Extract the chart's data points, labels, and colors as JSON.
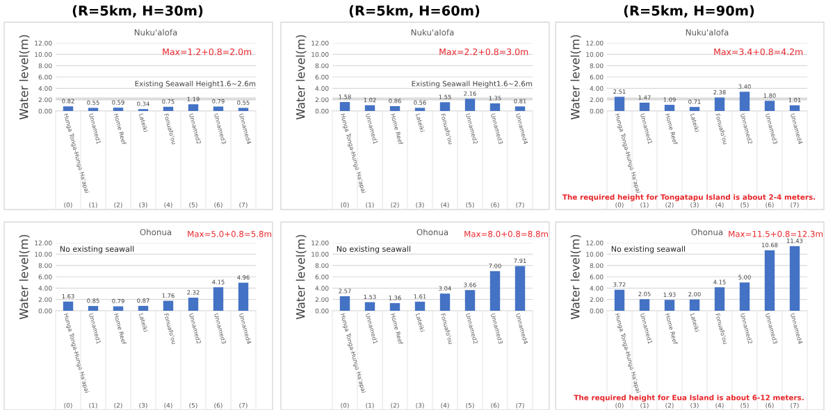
{
  "chart_data": [
    {
      "type": "bar",
      "subtitle": "(R=5km, H=30m)",
      "title": "Nuku'alofa",
      "ylabel": "Water level(m)",
      "categories": [
        "Hunga Tonga-Hunga Ha'apai",
        "Unnamed1",
        "Home Reef",
        "Lateiki",
        "Fonuafo'ou",
        "Unnamed2",
        "Unnamed3",
        "Unnamed4"
      ],
      "values": [
        0.82,
        0.55,
        0.59,
        0.34,
        0.75,
        1.19,
        0.79,
        0.55
      ],
      "color": "#4472c4",
      "value_labels": [
        "0.82",
        "0.55",
        "0.59",
        "0.34",
        "0.75",
        "1.19",
        "0.79",
        "0.55"
      ],
      "ylim": [
        0,
        12
      ],
      "yticks": [
        {
          "value": 0,
          "label": "0.00"
        },
        {
          "value": 2,
          "label": "2.00"
        },
        {
          "value": 4,
          "label": "4.00"
        },
        {
          "value": 6,
          "label": "6.00"
        },
        {
          "value": 8,
          "label": "8.00"
        },
        {
          "value": 10,
          "label": "10.00"
        },
        {
          "value": 12,
          "label": "12.00"
        }
      ],
      "grid": "y",
      "bands": [
        {
          "axis": "y",
          "from": 1.9,
          "to": 2.4,
          "label": "Existing Seawall Height1.6~2.6m",
          "color": "#d0d0d0"
        }
      ],
      "annotations": [
        "Max=1.2+0.8=2.0m",
        "(0)",
        "(1)",
        "(2)",
        "(3)",
        "(4)",
        "(5)",
        "(6)",
        "(7)"
      ]
    },
    {
      "type": "bar",
      "subtitle": "(R=5km, H=60m)",
      "title": "Nuku'alofa",
      "ylabel": "Water level(m)",
      "categories": [
        "Hunga Tonga-Hunga Ha'apai",
        "Unnamed1",
        "Home Reef",
        "Lateiki",
        "Fonuafo'ou",
        "Unnamed2",
        "Unnamed3",
        "Unnamed4"
      ],
      "values": [
        1.58,
        1.02,
        0.86,
        0.56,
        1.55,
        2.16,
        1.35,
        0.81
      ],
      "color": "#4472c4",
      "value_labels": [
        "1.58",
        "1.02",
        "0.86",
        "0.56",
        "1.55",
        "2.16",
        "1.35",
        "0.81"
      ],
      "ylim": [
        0,
        12
      ],
      "yticks": [
        {
          "value": 0,
          "label": "0.00"
        },
        {
          "value": 2,
          "label": "2.00"
        },
        {
          "value": 4,
          "label": "4.00"
        },
        {
          "value": 6,
          "label": "6.00"
        },
        {
          "value": 8,
          "label": "8.00"
        },
        {
          "value": 10,
          "label": "10.00"
        },
        {
          "value": 12,
          "label": "12.00"
        }
      ],
      "grid": "y",
      "bands": [
        {
          "axis": "y",
          "from": 1.9,
          "to": 2.4,
          "label": "Existing Seawall Height1.6~2.6m",
          "color": "#d0d0d0"
        }
      ],
      "annotations": [
        "Max=2.2+0.8=3.0m",
        "(0)",
        "(1)",
        "(2)",
        "(3)",
        "(4)",
        "(5)",
        "(6)",
        "(7)"
      ]
    },
    {
      "type": "bar",
      "subtitle": "(R=5km, H=90m)",
      "title": "Nuku'alofa",
      "ylabel": "Water level(m)",
      "categories": [
        "Hunga Tonga-Hunga Ha'apai",
        "Unnamed1",
        "Home Reef",
        "Lateiki",
        "Fonuafo'ou",
        "Unnamed2",
        "Unnamed3",
        "Unnamed4"
      ],
      "values": [
        2.51,
        1.47,
        1.09,
        0.71,
        2.38,
        3.4,
        1.8,
        1.01
      ],
      "color": "#4472c4",
      "value_labels": [
        "2.51",
        "1.47",
        "1.09",
        "0.71",
        "2.38",
        "3.40",
        "1.80",
        "1.01"
      ],
      "ylim": [
        0,
        12
      ],
      "yticks": [
        {
          "value": 0,
          "label": "0.00"
        },
        {
          "value": 2,
          "label": "2.00"
        },
        {
          "value": 4,
          "label": "4.00"
        },
        {
          "value": 6,
          "label": "6.00"
        },
        {
          "value": 8,
          "label": "8.00"
        },
        {
          "value": 10,
          "label": "10.00"
        },
        {
          "value": 12,
          "label": "12.00"
        }
      ],
      "grid": "y",
      "bands": [
        {
          "axis": "y",
          "from": 1.9,
          "to": 2.4,
          "color": "#d0d0d0"
        }
      ],
      "annotations": [
        "Max=3.4+0.8=4.2m",
        "The required height for Tongatapu Island is about 2-4 meters.",
        "(0)",
        "(1)",
        "(2)",
        "(3)",
        "(4)",
        "(5)",
        "(6)",
        "(7)"
      ]
    },
    {
      "type": "bar",
      "title": "Ohonua",
      "ylabel": "Water level(m)",
      "categories": [
        "Hunga Tonga-Hunga Ha'apai",
        "Unnamed1",
        "Home Reef",
        "Lateiki",
        "Fonuafo'ou",
        "Unnamed2",
        "Unnamed3",
        "Unnamed4"
      ],
      "values": [
        1.63,
        0.85,
        0.79,
        0.87,
        1.76,
        2.32,
        4.15,
        4.96
      ],
      "color": "#4472c4",
      "value_labels": [
        "1.63",
        "0.85",
        "0.79",
        "0.87",
        "1.76",
        "2.32",
        "4.15",
        "4.96"
      ],
      "ylim": [
        0,
        12
      ],
      "yticks": [
        {
          "value": 0,
          "label": "0.00"
        },
        {
          "value": 2,
          "label": "2.00"
        },
        {
          "value": 4,
          "label": "4.00"
        },
        {
          "value": 6,
          "label": "6.00"
        },
        {
          "value": 8,
          "label": "8.00"
        },
        {
          "value": 10,
          "label": "10.00"
        },
        {
          "value": 12,
          "label": "12.00"
        }
      ],
      "grid": "y",
      "annotations": [
        "Max=5.0+0.8=5.8m",
        "No existing seawall",
        "(0)",
        "(1)",
        "(2)",
        "(3)",
        "(4)",
        "(5)",
        "(6)",
        "(7)"
      ]
    },
    {
      "type": "bar",
      "title": "Ohonua",
      "ylabel": "Water level(m)",
      "categories": [
        "Hunga Tonga-Hunga Ha'apai",
        "Unnamed1",
        "Home Reef",
        "Lateiki",
        "Fonuafo'ou",
        "Unnamed2",
        "Unnamed3",
        "Unnamed4"
      ],
      "values": [
        2.57,
        1.53,
        1.36,
        1.61,
        3.04,
        3.66,
        7.0,
        7.91
      ],
      "color": "#4472c4",
      "value_labels": [
        "2.57",
        "1.53",
        "1.36",
        "1.61",
        "3.04",
        "3.66",
        "7.00",
        "7.91"
      ],
      "ylim": [
        0,
        12
      ],
      "yticks": [
        {
          "value": 0,
          "label": "0.00"
        },
        {
          "value": 2,
          "label": "2.00"
        },
        {
          "value": 4,
          "label": "4.00"
        },
        {
          "value": 6,
          "label": "6.00"
        },
        {
          "value": 8,
          "label": "8.00"
        },
        {
          "value": 10,
          "label": "10.00"
        },
        {
          "value": 12,
          "label": "12.00"
        }
      ],
      "grid": "y",
      "annotations": [
        "Max=8.0+0.8=8.8m",
        "No existing seawall",
        "(0)",
        "(1)",
        "(2)",
        "(3)",
        "(4)",
        "(5)",
        "(6)",
        "(7)"
      ]
    },
    {
      "type": "bar",
      "title": "Ohonua",
      "ylabel": "Water level(m)",
      "categories": [
        "Hunga Tonga-Hunga Ha'apai",
        "Unnamed1",
        "Home Reef",
        "Lateiki",
        "Fonuafo'ou",
        "Unnamed2",
        "Unnamed3",
        "Unnamed4"
      ],
      "values": [
        3.72,
        2.05,
        1.93,
        2.0,
        4.15,
        5.0,
        10.68,
        11.43
      ],
      "color": "#4472c4",
      "value_labels": [
        "3.72",
        "2.05",
        "1.93",
        "2.00",
        "4.15",
        "5.00",
        "10.68",
        "11.43"
      ],
      "ylim": [
        0,
        12
      ],
      "yticks": [
        {
          "value": 0,
          "label": "0.00"
        },
        {
          "value": 2,
          "label": "2.00"
        },
        {
          "value": 4,
          "label": "4.00"
        },
        {
          "value": 6,
          "label": "6.00"
        },
        {
          "value": 8,
          "label": "8.00"
        },
        {
          "value": 10,
          "label": "10.00"
        },
        {
          "value": 12,
          "label": "12.00"
        }
      ],
      "grid": "y",
      "annotations": [
        "Max=11.5+0.8=12.3m",
        "No existing seawall",
        "The required height for Eua Island is about 6-12 meters.",
        "(0)",
        "(1)",
        "(2)",
        "(3)",
        "(4)",
        "(5)",
        "(6)",
        "(7)"
      ]
    }
  ]
}
